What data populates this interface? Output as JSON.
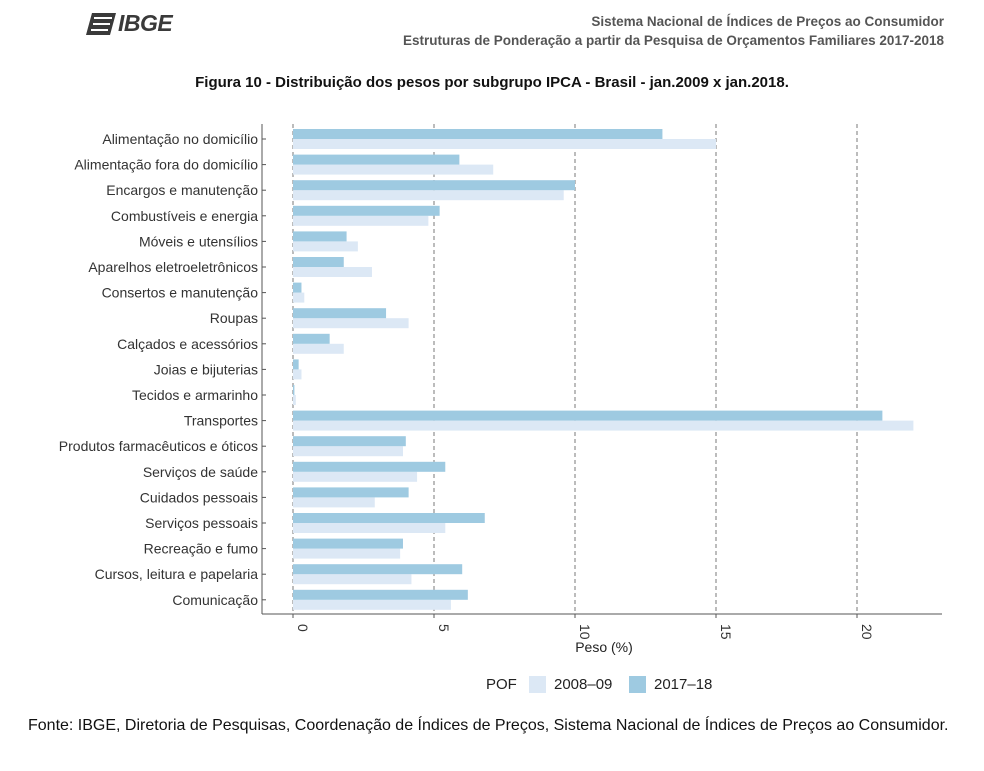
{
  "header": {
    "logo_text": "IBGE",
    "line1": "Sistema Nacional de Índices de Preços ao Consumidor",
    "line2": "Estruturas de Ponderação a partir da Pesquisa de Orçamentos Familiares 2017-2018"
  },
  "figure_title": "Figura 10 - Distribuição dos pesos por subgrupo IPCA - Brasil - jan.2009 x jan.2018.",
  "source": "Fonte: IBGE, Diretoria de Pesquisas, Coordenação de Índices de Preços, Sistema Nacional de Índices de Preços ao Consumidor.",
  "colors": {
    "series_2008": "#dce8f5",
    "series_2017": "#9ecae1",
    "grid": "#7a7a7a",
    "axis": "#555555",
    "logo": "#3a3a3a"
  },
  "chart_data": {
    "type": "bar",
    "orientation": "horizontal",
    "xlabel": "Peso (%)",
    "xlim": [
      0,
      23
    ],
    "xticks": [
      0,
      5,
      10,
      15,
      20
    ],
    "grid": "vertical dashed at major ticks",
    "legend_title": "POF",
    "legend_position": "bottom",
    "categories": [
      "Alimentação no domicílio",
      "Alimentação fora do domicílio",
      "Encargos e manutenção",
      "Combustíveis e energia",
      "Móveis e utensílios",
      "Aparelhos eletroeletrônicos",
      "Consertos e manutenção",
      "Roupas",
      "Calçados e acessórios",
      "Joias e bijuterias",
      "Tecidos e armarinho",
      "Transportes",
      "Produtos farmacêuticos e óticos",
      "Serviços de saúde",
      "Cuidados pessoais",
      "Serviços pessoais",
      "Recreação e fumo",
      "Cursos, leitura e papelaria",
      "Comunicação"
    ],
    "series": [
      {
        "name": "2008–09",
        "values": [
          15.0,
          7.1,
          9.6,
          4.8,
          2.3,
          2.8,
          0.4,
          4.1,
          1.8,
          0.3,
          0.1,
          22.0,
          3.9,
          4.4,
          2.9,
          5.4,
          3.8,
          4.2,
          5.6
        ]
      },
      {
        "name": "2017–18",
        "values": [
          13.1,
          5.9,
          10.0,
          5.2,
          1.9,
          1.8,
          0.3,
          3.3,
          1.3,
          0.2,
          0.05,
          20.9,
          4.0,
          5.4,
          4.1,
          6.8,
          3.9,
          6.0,
          6.2
        ]
      }
    ]
  }
}
